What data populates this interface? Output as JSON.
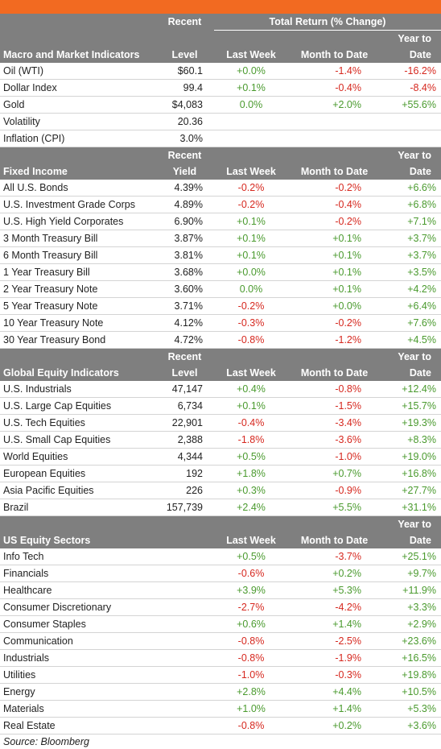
{
  "colors": {
    "accent": "#f26a21",
    "header_bg": "#7f7f7f",
    "positive": "#4a9a2e",
    "negative": "#d6281f"
  },
  "header_title": "Total Return (% Change)",
  "sections": [
    {
      "name": "Macro and Market Indicators",
      "level_header": [
        "Recent",
        "Level"
      ],
      "cols": {
        "lw": "Last Week",
        "mtd": "Month to Date",
        "ytd": [
          "Year to",
          "Date"
        ]
      },
      "rows": [
        {
          "name": "Oil (WTI)",
          "level": "$60.1",
          "lw": "+0.0%",
          "mtd": "-1.4%",
          "ytd": "-16.2%"
        },
        {
          "name": "Dollar Index",
          "level": "99.4",
          "lw": "+0.1%",
          "mtd": "-0.4%",
          "ytd": "-8.4%"
        },
        {
          "name": "Gold",
          "level": "$4,083",
          "lw": "0.0%",
          "mtd": "+2.0%",
          "ytd": "+55.6%"
        },
        {
          "name": "Volatility",
          "level": "20.36",
          "lw": "",
          "mtd": "",
          "ytd": ""
        },
        {
          "name": "Inflation (CPI)",
          "level": "3.0%",
          "lw": "",
          "mtd": "",
          "ytd": ""
        }
      ]
    },
    {
      "name": "Fixed Income",
      "level_header": [
        "Recent",
        "Yield"
      ],
      "cols": {
        "lw": "Last Week",
        "mtd": "Month to Date",
        "ytd": [
          "Year to",
          "Date"
        ]
      },
      "rows": [
        {
          "name": "All U.S. Bonds",
          "level": "4.39%",
          "lw": "-0.2%",
          "mtd": "-0.2%",
          "ytd": "+6.6%"
        },
        {
          "name": "U.S. Investment Grade Corps",
          "level": "4.89%",
          "lw": "-0.2%",
          "mtd": "-0.4%",
          "ytd": "+6.8%"
        },
        {
          "name": "U.S. High Yield Corporates",
          "level": "6.90%",
          "lw": "+0.1%",
          "mtd": "-0.2%",
          "ytd": "+7.1%"
        },
        {
          "name": "3 Month Treasury Bill",
          "level": "3.87%",
          "lw": "+0.1%",
          "mtd": "+0.1%",
          "ytd": "+3.7%"
        },
        {
          "name": "6 Month Treasury Bill",
          "level": "3.81%",
          "lw": "+0.1%",
          "mtd": "+0.1%",
          "ytd": "+3.7%"
        },
        {
          "name": "1 Year Treasury Bill",
          "level": "3.68%",
          "lw": "+0.0%",
          "mtd": "+0.1%",
          "ytd": "+3.5%"
        },
        {
          "name": "2 Year Treasury Note",
          "level": "3.60%",
          "lw": "0.0%",
          "mtd": "+0.1%",
          "ytd": "+4.2%"
        },
        {
          "name": "5 Year Treasury Note",
          "level": "3.71%",
          "lw": "-0.2%",
          "mtd": "+0.0%",
          "ytd": "+6.4%"
        },
        {
          "name": "10 Year Treasury Note",
          "level": "4.12%",
          "lw": "-0.3%",
          "mtd": "-0.2%",
          "ytd": "+7.6%"
        },
        {
          "name": "30 Year Treasury Bond",
          "level": "4.72%",
          "lw": "-0.8%",
          "mtd": "-1.2%",
          "ytd": "+4.5%"
        }
      ]
    },
    {
      "name": "Global Equity Indicators",
      "level_header": [
        "Recent",
        "Level"
      ],
      "cols": {
        "lw": "Last Week",
        "mtd": "Month to Date",
        "ytd": [
          "Year to",
          "Date"
        ]
      },
      "rows": [
        {
          "name": "U.S. Industrials",
          "level": "47,147",
          "lw": "+0.4%",
          "mtd": "-0.8%",
          "ytd": "+12.4%"
        },
        {
          "name": "U.S. Large Cap Equities",
          "level": "6,734",
          "lw": "+0.1%",
          "mtd": "-1.5%",
          "ytd": "+15.7%"
        },
        {
          "name": "U.S. Tech Equities",
          "level": "22,901",
          "lw": "-0.4%",
          "mtd": "-3.4%",
          "ytd": "+19.3%"
        },
        {
          "name": "U.S. Small Cap Equities",
          "level": "2,388",
          "lw": "-1.8%",
          "mtd": "-3.6%",
          "ytd": "+8.3%"
        },
        {
          "name": "World Equities",
          "level": "4,344",
          "lw": "+0.5%",
          "mtd": "-1.0%",
          "ytd": "+19.0%"
        },
        {
          "name": "European Equities",
          "level": "192",
          "lw": "+1.8%",
          "mtd": "+0.7%",
          "ytd": "+16.8%"
        },
        {
          "name": "Asia Pacific Equities",
          "level": "226",
          "lw": "+0.3%",
          "mtd": "-0.9%",
          "ytd": "+27.7%"
        },
        {
          "name": "Brazil",
          "level": "157,739",
          "lw": "+2.4%",
          "mtd": "+5.5%",
          "ytd": "+31.1%"
        }
      ]
    },
    {
      "name": "US Equity Sectors",
      "level_header": [
        "",
        ""
      ],
      "cols": {
        "lw": "Last Week",
        "mtd": "Month to Date",
        "ytd": [
          "Year to",
          "Date"
        ]
      },
      "rows": [
        {
          "name": "Info Tech",
          "level": "",
          "lw": "+0.5%",
          "mtd": "-3.7%",
          "ytd": "+25.1%"
        },
        {
          "name": "Financials",
          "level": "",
          "lw": "-0.6%",
          "mtd": "+0.2%",
          "ytd": "+9.7%"
        },
        {
          "name": "Healthcare",
          "level": "",
          "lw": "+3.9%",
          "mtd": "+5.3%",
          "ytd": "+11.9%"
        },
        {
          "name": "Consumer Discretionary",
          "level": "",
          "lw": "-2.7%",
          "mtd": "-4.2%",
          "ytd": "+3.3%"
        },
        {
          "name": "Consumer Staples",
          "level": "",
          "lw": "+0.6%",
          "mtd": "+1.4%",
          "ytd": "+2.9%"
        },
        {
          "name": "Communication",
          "level": "",
          "lw": "-0.8%",
          "mtd": "-2.5%",
          "ytd": "+23.6%"
        },
        {
          "name": "Industrials",
          "level": "",
          "lw": "-0.8%",
          "mtd": "-1.9%",
          "ytd": "+16.5%"
        },
        {
          "name": "Utilities",
          "level": "",
          "lw": "-1.0%",
          "mtd": "-0.3%",
          "ytd": "+19.8%"
        },
        {
          "name": "Energy",
          "level": "",
          "lw": "+2.8%",
          "mtd": "+4.4%",
          "ytd": "+10.5%"
        },
        {
          "name": "Materials",
          "level": "",
          "lw": "+1.0%",
          "mtd": "+1.4%",
          "ytd": "+5.3%"
        },
        {
          "name": "Real Estate",
          "level": "",
          "lw": "-0.8%",
          "mtd": "+0.2%",
          "ytd": "+3.6%"
        }
      ]
    }
  ],
  "source": "Source: Bloomberg"
}
